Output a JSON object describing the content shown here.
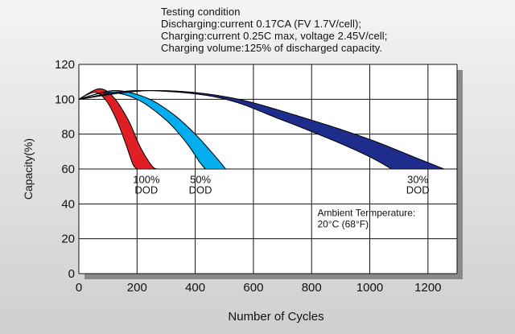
{
  "testing_condition": {
    "heading": "Testing condition",
    "lines": [
      "Discharging:current 0.17CA (FV 1.7V/cell);",
      "Charging:current 0.25C max, voltage 2.45V/cell;",
      "Charging volume:125% of discharged capacity."
    ]
  },
  "chart_data": {
    "type": "area",
    "title": "",
    "xlabel": "Number of Cycles",
    "ylabel": "Capacity(%)",
    "xlim": [
      0,
      1300
    ],
    "ylim": [
      0,
      120
    ],
    "xticks": [
      0,
      200,
      400,
      600,
      800,
      1000,
      1200
    ],
    "yticks": [
      0,
      20,
      40,
      60,
      80,
      100,
      120
    ],
    "grid": true,
    "series": [
      {
        "label_lines": [
          "100%",
          "DOD"
        ],
        "color": "#e01f25",
        "upper": [
          [
            0,
            100
          ],
          [
            70,
            106
          ],
          [
            120,
            101
          ],
          [
            170,
            88
          ],
          [
            210,
            73
          ],
          [
            250,
            62
          ],
          [
            268,
            60
          ]
        ],
        "lower": [
          [
            0,
            100
          ],
          [
            55,
            104
          ],
          [
            95,
            99
          ],
          [
            130,
            88
          ],
          [
            160,
            75
          ],
          [
            185,
            63
          ],
          [
            200,
            60
          ]
        ]
      },
      {
        "label_lines": [
          "50%",
          "DOD"
        ],
        "color": "#00aeef",
        "upper": [
          [
            0,
            100
          ],
          [
            120,
            105
          ],
          [
            230,
            101
          ],
          [
            320,
            92
          ],
          [
            400,
            80
          ],
          [
            470,
            67
          ],
          [
            505,
            60
          ]
        ],
        "lower": [
          [
            0,
            100
          ],
          [
            100,
            104
          ],
          [
            200,
            100
          ],
          [
            300,
            88
          ],
          [
            370,
            75
          ],
          [
            415,
            64
          ],
          [
            435,
            60
          ]
        ]
      },
      {
        "label_lines": [
          "30%",
          "DOD"
        ],
        "color": "#1e2c8c",
        "upper": [
          [
            0,
            100
          ],
          [
            250,
            105
          ],
          [
            520,
            101
          ],
          [
            800,
            88
          ],
          [
            1000,
            77
          ],
          [
            1150,
            67
          ],
          [
            1255,
            60
          ]
        ],
        "lower": [
          [
            0,
            100
          ],
          [
            200,
            105
          ],
          [
            480,
            101
          ],
          [
            700,
            88
          ],
          [
            880,
            76
          ],
          [
            1000,
            67
          ],
          [
            1075,
            60
          ]
        ]
      }
    ],
    "annotations": {
      "ambient_lines": [
        "Ambient Termperature:",
        "20°C (68°F)"
      ]
    }
  },
  "colors": {
    "plot_background": "#ffffff",
    "plot_shadow": "#8a8a8a",
    "grid": "#111111"
  }
}
